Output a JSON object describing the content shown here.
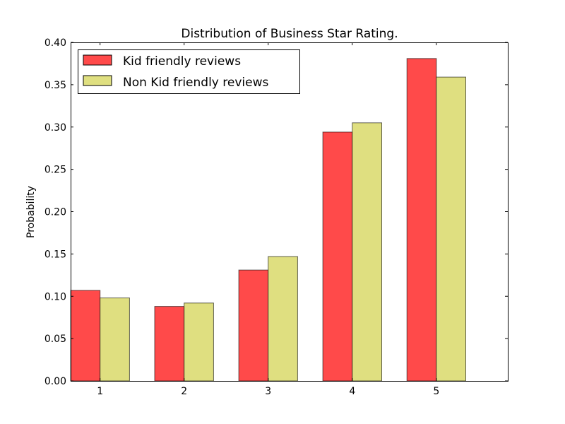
{
  "chart_data": {
    "type": "bar",
    "title": "Distribution of Business Star Rating.",
    "xlabel": "",
    "ylabel": "Probability",
    "categories": [
      "1",
      "2",
      "3",
      "4",
      "5"
    ],
    "series": [
      {
        "name": "Kid friendly reviews",
        "color": "#ff4a4a",
        "values": [
          0.107,
          0.088,
          0.131,
          0.294,
          0.381
        ]
      },
      {
        "name": "Non Kid friendly reviews",
        "color": "#dfdf80",
        "values": [
          0.098,
          0.092,
          0.147,
          0.305,
          0.359
        ]
      }
    ],
    "ylim": [
      0,
      0.4
    ],
    "yticks": [
      "0.00",
      "0.05",
      "0.10",
      "0.15",
      "0.20",
      "0.25",
      "0.30",
      "0.35",
      "0.40"
    ],
    "grid": false,
    "legend_position": "top-left"
  }
}
